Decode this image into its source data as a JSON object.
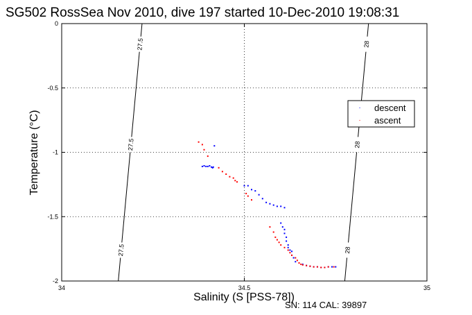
{
  "chart_data": {
    "type": "scatter",
    "title": "SG502 RossSea Nov 2010, dive 197 started 10-Dec-2010 19:08:31",
    "xlabel": "Salinity (S [PSS-78])",
    "ylabel": "Temperature (°C)",
    "xlim": [
      34,
      35
    ],
    "ylim": [
      -2,
      0
    ],
    "xticks": [
      "34",
      "34.5",
      "35"
    ],
    "yticks": [
      "0",
      "-0.5",
      "-1",
      "-1.5",
      "-2"
    ],
    "grid": true,
    "legend_position": "right",
    "footer": "SN: 114  CAL: 39897",
    "isopycnals": [
      {
        "label": "27.5",
        "x_at_top": 34.22,
        "x_at_bottom": 34.155
      },
      {
        "label": "28",
        "x_at_top": 34.84,
        "x_at_bottom": 34.775
      }
    ],
    "series": [
      {
        "name": "descent",
        "color": "#0000ff",
        "points": [
          [
            34.385,
            -1.11
          ],
          [
            34.39,
            -1.105
          ],
          [
            34.395,
            -1.11
          ],
          [
            34.4,
            -1.11
          ],
          [
            34.405,
            -1.105
          ],
          [
            34.41,
            -1.115
          ],
          [
            34.413,
            -1.12
          ],
          [
            34.415,
            -1.115
          ],
          [
            34.418,
            -0.95
          ],
          [
            34.5,
            -1.26
          ],
          [
            34.51,
            -1.26
          ],
          [
            34.52,
            -1.29
          ],
          [
            34.53,
            -1.3
          ],
          [
            34.54,
            -1.33
          ],
          [
            34.55,
            -1.36
          ],
          [
            34.56,
            -1.39
          ],
          [
            34.57,
            -1.4
          ],
          [
            34.58,
            -1.41
          ],
          [
            34.59,
            -1.42
          ],
          [
            34.6,
            -1.42
          ],
          [
            34.61,
            -1.43
          ],
          [
            34.6,
            -1.55
          ],
          [
            34.605,
            -1.58
          ],
          [
            34.61,
            -1.6
          ],
          [
            34.61,
            -1.63
          ],
          [
            34.615,
            -1.66
          ],
          [
            34.615,
            -1.69
          ],
          [
            34.62,
            -1.72
          ],
          [
            34.62,
            -1.74
          ],
          [
            34.625,
            -1.76
          ],
          [
            34.63,
            -1.77
          ],
          [
            34.63,
            -1.8
          ],
          [
            34.635,
            -1.82
          ],
          [
            34.64,
            -1.85
          ],
          [
            34.65,
            -1.86
          ],
          [
            34.66,
            -1.87
          ],
          [
            34.67,
            -1.88
          ],
          [
            34.68,
            -1.885
          ],
          [
            34.69,
            -1.89
          ],
          [
            34.7,
            -1.89
          ],
          [
            34.71,
            -1.895
          ],
          [
            34.72,
            -1.895
          ],
          [
            34.73,
            -1.89
          ],
          [
            34.74,
            -1.89
          ],
          [
            34.75,
            -1.89
          ]
        ]
      },
      {
        "name": "ascent",
        "color": "#ff0000",
        "points": [
          [
            34.375,
            -0.92
          ],
          [
            34.385,
            -0.94
          ],
          [
            34.39,
            -0.98
          ],
          [
            34.4,
            -1.03
          ],
          [
            34.43,
            -1.12
          ],
          [
            34.44,
            -1.15
          ],
          [
            34.45,
            -1.17
          ],
          [
            34.46,
            -1.19
          ],
          [
            34.47,
            -1.2
          ],
          [
            34.475,
            -1.22
          ],
          [
            34.48,
            -1.23
          ],
          [
            34.505,
            -1.32
          ],
          [
            34.51,
            -1.34
          ],
          [
            34.52,
            -1.37
          ],
          [
            34.57,
            -1.58
          ],
          [
            34.58,
            -1.62
          ],
          [
            34.585,
            -1.66
          ],
          [
            34.59,
            -1.68
          ],
          [
            34.595,
            -1.7
          ],
          [
            34.6,
            -1.72
          ],
          [
            34.61,
            -1.74
          ],
          [
            34.62,
            -1.76
          ],
          [
            34.625,
            -1.78
          ],
          [
            34.63,
            -1.8
          ],
          [
            34.64,
            -1.82
          ],
          [
            34.645,
            -1.84
          ],
          [
            34.65,
            -1.86
          ],
          [
            34.655,
            -1.87
          ],
          [
            34.66,
            -1.875
          ],
          [
            34.67,
            -1.88
          ],
          [
            34.68,
            -1.885
          ],
          [
            34.69,
            -1.89
          ],
          [
            34.7,
            -1.89
          ],
          [
            34.71,
            -1.895
          ],
          [
            34.72,
            -1.895
          ],
          [
            34.73,
            -1.89
          ],
          [
            34.745,
            -1.89
          ]
        ]
      }
    ]
  }
}
